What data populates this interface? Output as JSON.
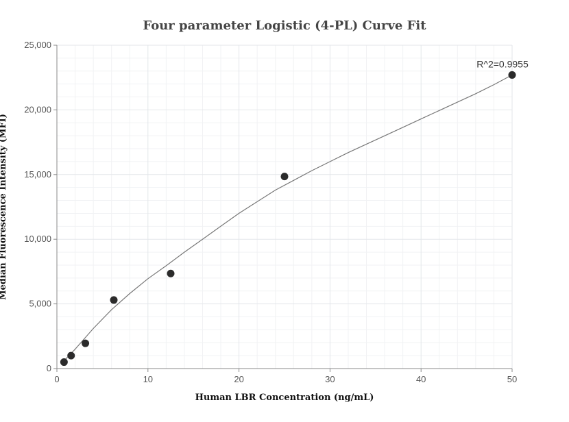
{
  "chart_data": {
    "type": "scatter",
    "title": "Four parameter Logistic (4-PL) Curve Fit",
    "xlabel": "Human LBR Concentration (ng/mL)",
    "ylabel": "Median Fluorescence Intensity (MFI)",
    "xlim": [
      0,
      50
    ],
    "ylim": [
      0,
      25000
    ],
    "x_ticks": [
      0,
      10,
      20,
      30,
      40,
      50
    ],
    "x_tick_labels": [
      "0",
      "10",
      "20",
      "30",
      "40",
      "50"
    ],
    "y_ticks": [
      0,
      5000,
      10000,
      15000,
      20000,
      25000
    ],
    "y_tick_labels": [
      "0",
      "5,000",
      "10,000",
      "15,000",
      "20,000",
      "25,000"
    ],
    "grid": true,
    "series": [
      {
        "kind": "points",
        "x": [
          0.78,
          1.56,
          3.13,
          6.25,
          12.5,
          25,
          50
        ],
        "y": [
          500,
          1000,
          1950,
          5300,
          7350,
          14850,
          22700
        ]
      },
      {
        "kind": "fit-curve",
        "x": [
          0.78,
          2,
          4,
          6,
          8,
          10,
          12,
          14,
          16,
          18,
          20,
          22,
          24,
          26,
          28,
          30,
          32,
          34,
          36,
          38,
          40,
          42,
          44,
          46,
          48,
          50
        ],
        "y": [
          600,
          1500,
          3100,
          4550,
          5800,
          6950,
          7950,
          9000,
          10000,
          11000,
          12000,
          12900,
          13800,
          14550,
          15300,
          16000,
          16700,
          17350,
          18000,
          18650,
          19300,
          19950,
          20600,
          21250,
          21950,
          22700
        ]
      }
    ],
    "annotations": [
      {
        "text": "R^2=0.9955",
        "x": 50,
        "y": 22700
      }
    ]
  }
}
